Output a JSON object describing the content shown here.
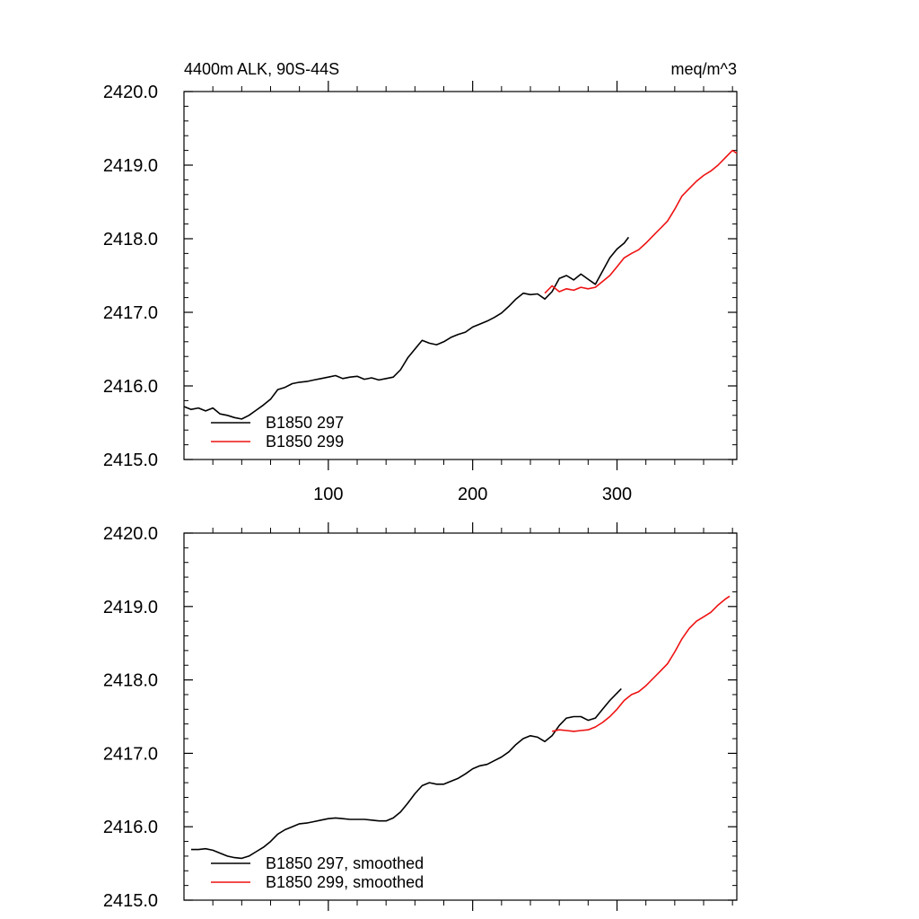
{
  "figure": {
    "title_left": "4400m ALK, 90S-44S",
    "title_right": "meq/m^3"
  },
  "chart_data": [
    {
      "type": "line",
      "title": "4400m ALK, 90S-44S",
      "units": "meq/m^3",
      "xlim": [
        0,
        383
      ],
      "ylim": [
        2415.0,
        2420.0
      ],
      "xticks": [
        100,
        200,
        300
      ],
      "xtick_labels": [
        "100",
        "200",
        "300"
      ],
      "yticks": [
        2415.0,
        2416.0,
        2417.0,
        2418.0,
        2419.0,
        2420.0
      ],
      "ytick_labels": [
        "2415.0",
        "2416.0",
        "2417.0",
        "2418.0",
        "2419.0",
        "2420.0"
      ],
      "legend_position": "bottom-left",
      "series": [
        {
          "name": "B1850 297",
          "color": "#000000",
          "x": [
            0,
            5,
            10,
            15,
            20,
            25,
            30,
            35,
            40,
            45,
            50,
            55,
            60,
            65,
            70,
            75,
            80,
            85,
            90,
            95,
            100,
            105,
            110,
            115,
            120,
            125,
            130,
            135,
            140,
            145,
            150,
            155,
            160,
            165,
            170,
            175,
            180,
            185,
            190,
            195,
            200,
            205,
            210,
            215,
            220,
            225,
            230,
            235,
            240,
            245,
            250,
            255,
            260,
            265,
            270,
            275,
            280,
            285,
            290,
            295,
            300,
            305,
            308
          ],
          "y": [
            2415.72,
            2415.68,
            2415.7,
            2415.66,
            2415.7,
            2415.62,
            2415.6,
            2415.57,
            2415.55,
            2415.6,
            2415.67,
            2415.74,
            2415.82,
            2415.95,
            2415.98,
            2416.03,
            2416.05,
            2416.06,
            2416.08,
            2416.1,
            2416.12,
            2416.14,
            2416.1,
            2416.12,
            2416.13,
            2416.09,
            2416.11,
            2416.08,
            2416.1,
            2416.12,
            2416.22,
            2416.38,
            2416.5,
            2416.62,
            2416.58,
            2416.56,
            2416.6,
            2416.66,
            2416.7,
            2416.73,
            2416.8,
            2416.84,
            2416.88,
            2416.93,
            2416.99,
            2417.08,
            2417.18,
            2417.26,
            2417.24,
            2417.25,
            2417.18,
            2417.28,
            2417.46,
            2417.5,
            2417.44,
            2417.52,
            2417.45,
            2417.38,
            2417.56,
            2417.74,
            2417.86,
            2417.94,
            2418.02
          ]
        },
        {
          "name": "B1850 299",
          "color": "#ee1111",
          "x": [
            250,
            255,
            260,
            265,
            270,
            275,
            280,
            285,
            290,
            295,
            300,
            305,
            310,
            315,
            320,
            325,
            330,
            335,
            340,
            345,
            350,
            355,
            360,
            365,
            370,
            375,
            380,
            383
          ],
          "y": [
            2417.26,
            2417.36,
            2417.28,
            2417.32,
            2417.3,
            2417.34,
            2417.32,
            2417.34,
            2417.42,
            2417.5,
            2417.62,
            2417.74,
            2417.8,
            2417.85,
            2417.94,
            2418.04,
            2418.14,
            2418.24,
            2418.4,
            2418.58,
            2418.68,
            2418.78,
            2418.86,
            2418.92,
            2419.0,
            2419.1,
            2419.2,
            2419.16
          ]
        }
      ]
    },
    {
      "type": "line",
      "title": "",
      "units": "meq/m^3",
      "xlim": [
        0,
        383
      ],
      "ylim": [
        2415.0,
        2420.0
      ],
      "xticks": [
        100,
        200,
        300
      ],
      "xtick_labels": [],
      "yticks": [
        2415.0,
        2416.0,
        2417.0,
        2418.0,
        2419.0,
        2420.0
      ],
      "ytick_labels": [
        "2415.0",
        "2416.0",
        "2417.0",
        "2418.0",
        "2419.0",
        "2420.0"
      ],
      "legend_position": "bottom-left",
      "series": [
        {
          "name": "B1850 297, smoothed",
          "color": "#000000",
          "x": [
            5,
            10,
            15,
            20,
            25,
            30,
            35,
            40,
            45,
            50,
            55,
            60,
            65,
            70,
            75,
            80,
            85,
            90,
            95,
            100,
            105,
            110,
            115,
            120,
            125,
            130,
            135,
            140,
            145,
            150,
            155,
            160,
            165,
            170,
            175,
            180,
            185,
            190,
            195,
            200,
            205,
            210,
            215,
            220,
            225,
            230,
            235,
            240,
            245,
            250,
            255,
            260,
            265,
            270,
            275,
            280,
            285,
            290,
            295,
            300,
            303
          ],
          "y": [
            2415.69,
            2415.69,
            2415.7,
            2415.68,
            2415.64,
            2415.6,
            2415.58,
            2415.57,
            2415.6,
            2415.66,
            2415.72,
            2415.8,
            2415.9,
            2415.96,
            2416.0,
            2416.04,
            2416.05,
            2416.07,
            2416.09,
            2416.11,
            2416.12,
            2416.11,
            2416.1,
            2416.1,
            2416.1,
            2416.09,
            2416.08,
            2416.08,
            2416.12,
            2416.2,
            2416.32,
            2416.45,
            2416.56,
            2416.6,
            2416.58,
            2416.58,
            2416.62,
            2416.66,
            2416.72,
            2416.79,
            2416.83,
            2416.85,
            2416.9,
            2416.95,
            2417.02,
            2417.12,
            2417.2,
            2417.24,
            2417.22,
            2417.16,
            2417.24,
            2417.38,
            2417.48,
            2417.5,
            2417.5,
            2417.45,
            2417.48,
            2417.6,
            2417.72,
            2417.82,
            2417.88
          ]
        },
        {
          "name": "B1850 299, smoothed",
          "color": "#ee1111",
          "x": [
            255,
            260,
            265,
            270,
            275,
            280,
            285,
            290,
            295,
            300,
            305,
            310,
            315,
            320,
            325,
            330,
            335,
            340,
            345,
            350,
            355,
            360,
            365,
            370,
            375,
            378
          ],
          "y": [
            2417.3,
            2417.32,
            2417.31,
            2417.3,
            2417.31,
            2417.32,
            2417.36,
            2417.42,
            2417.5,
            2417.6,
            2417.72,
            2417.8,
            2417.84,
            2417.92,
            2418.02,
            2418.12,
            2418.22,
            2418.38,
            2418.56,
            2418.7,
            2418.8,
            2418.86,
            2418.92,
            2419.02,
            2419.1,
            2419.14
          ]
        }
      ]
    }
  ]
}
